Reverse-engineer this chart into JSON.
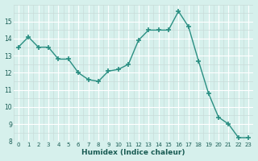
{
  "x": [
    0,
    1,
    2,
    3,
    4,
    5,
    6,
    7,
    8,
    9,
    10,
    11,
    12,
    13,
    14,
    15,
    16,
    17,
    18,
    19,
    20,
    21,
    22,
    23
  ],
  "y": [
    13.5,
    14.1,
    13.5,
    13.5,
    12.8,
    12.8,
    12.0,
    11.6,
    11.5,
    12.1,
    12.2,
    12.5,
    13.9,
    14.5,
    14.5,
    14.5,
    15.6,
    14.7,
    12.7,
    10.8,
    9.4,
    9.0,
    8.2,
    8.2
  ],
  "xlabel": "Humidex (Indice chaleur)",
  "ylim": [
    8,
    16
  ],
  "xlim": [
    -0.5,
    23.5
  ],
  "yticks": [
    8,
    9,
    10,
    11,
    12,
    13,
    14,
    15
  ],
  "xticks": [
    0,
    1,
    2,
    3,
    4,
    5,
    6,
    7,
    8,
    9,
    10,
    11,
    12,
    13,
    14,
    15,
    16,
    17,
    18,
    19,
    20,
    21,
    22,
    23
  ],
  "line_color": "#2a8f82",
  "marker_color": "#2a8f82",
  "bg_color": "#d6f0ec",
  "grid_major_color": "#ffffff",
  "grid_minor_color": "#c8dbd8"
}
